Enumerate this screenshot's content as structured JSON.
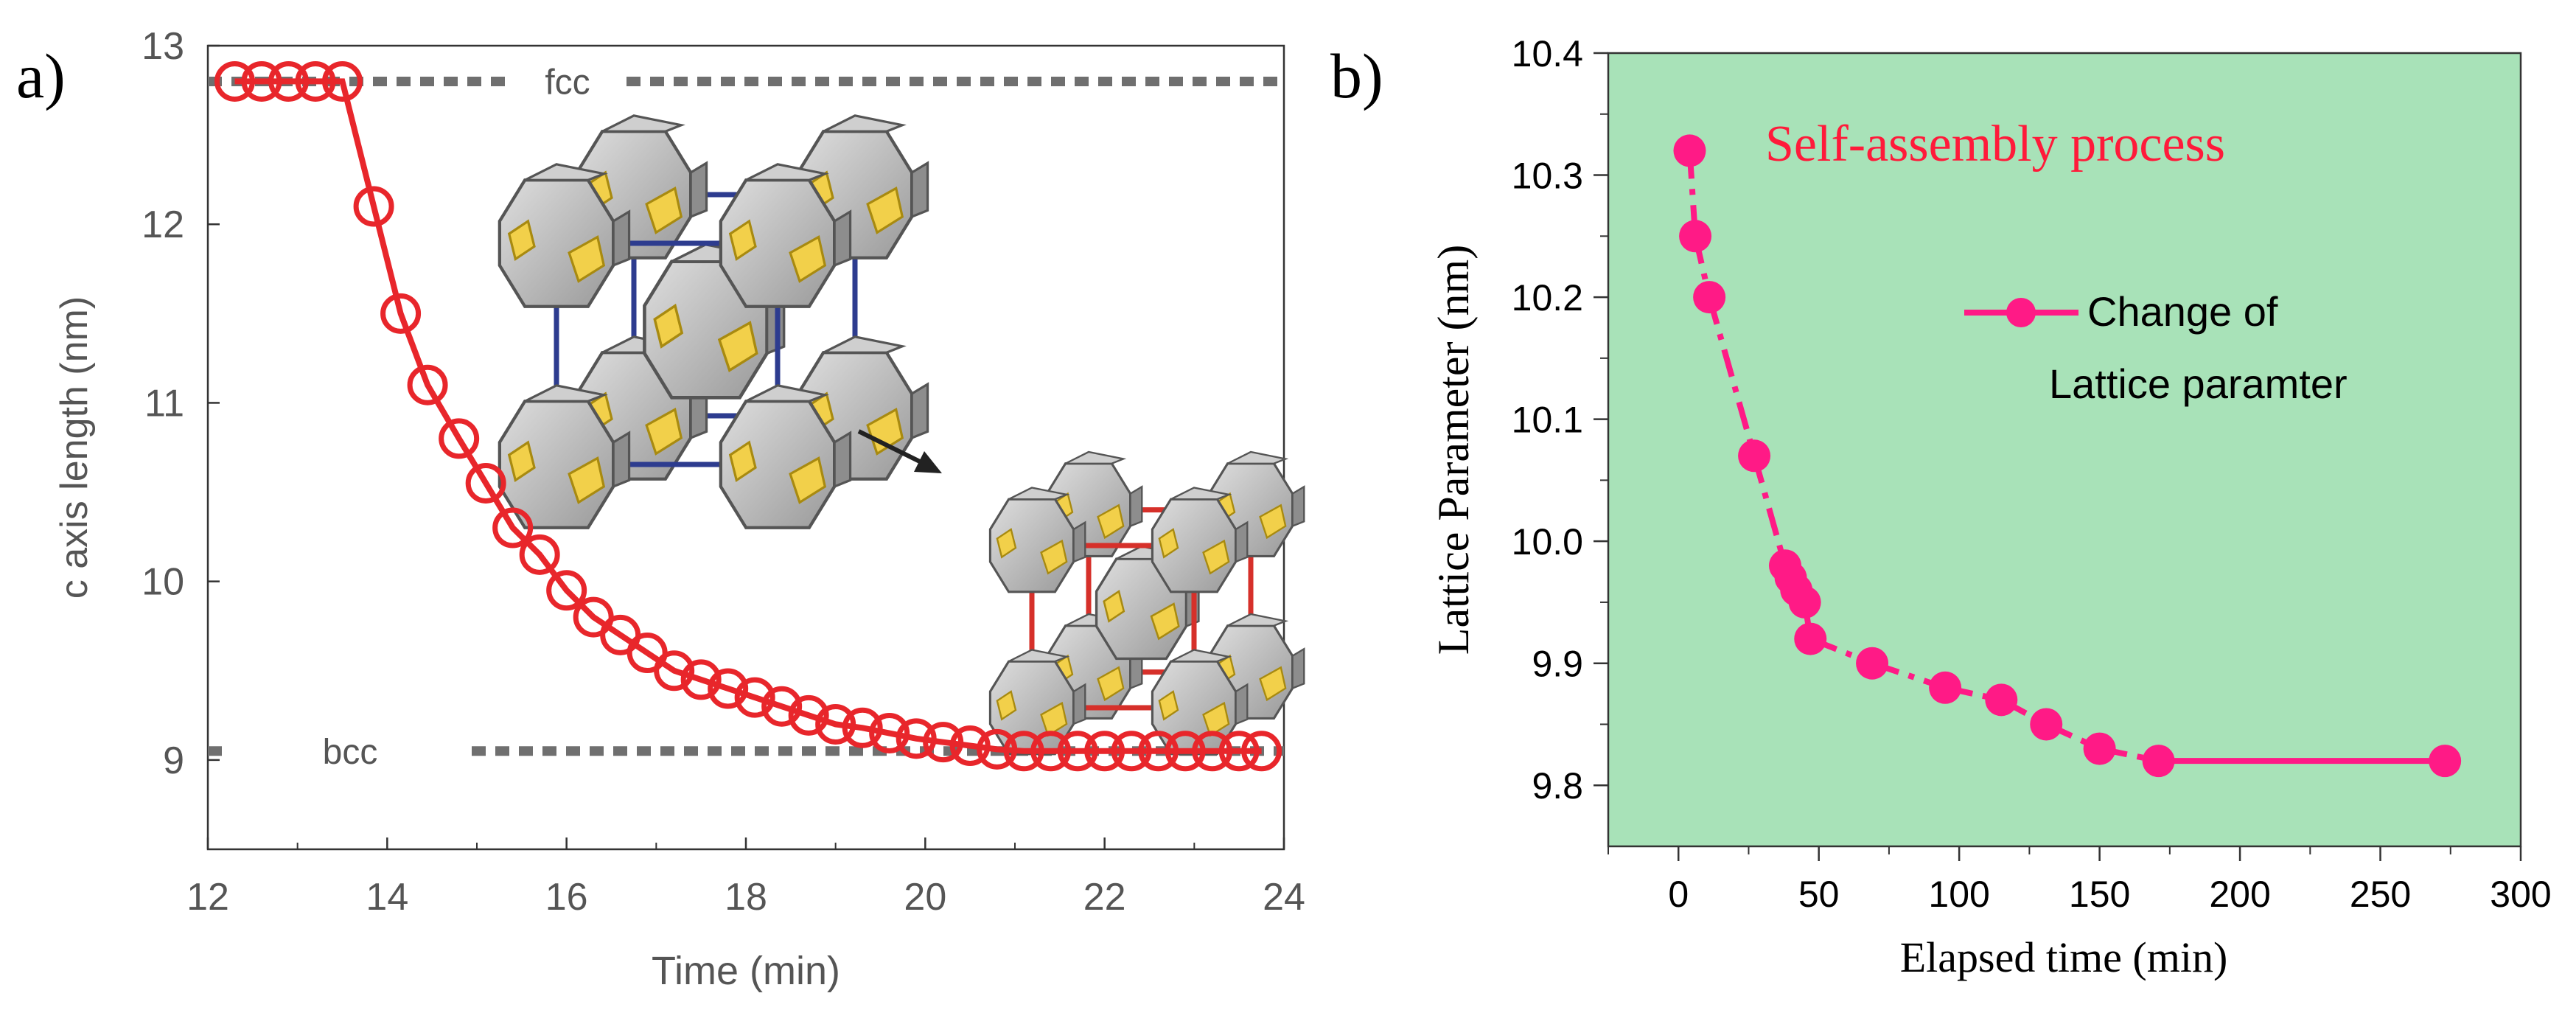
{
  "chart_data": [
    {
      "panel_label": "a)",
      "type": "line",
      "xlabel": "Time (min)",
      "ylabel": "c axis length (nm)",
      "xlim": [
        12,
        24
      ],
      "ylim": [
        8.5,
        13
      ],
      "xticks": [
        12,
        14,
        16,
        18,
        20,
        22,
        24
      ],
      "yticks": [
        9,
        10,
        11,
        12,
        13
      ],
      "x_tick_labels": [
        "12",
        "14",
        "16",
        "18",
        "20",
        "22",
        "24"
      ],
      "y_tick_labels": [
        "9",
        "10",
        "11",
        "12",
        "13"
      ],
      "reference_lines": [
        {
          "label": "fcc",
          "value": 12.8
        },
        {
          "label": "bcc",
          "value": 9.05
        }
      ],
      "series": [
        {
          "name": "c axis length",
          "color": "#e8262b",
          "x": [
            12.3,
            12.6,
            12.9,
            13.2,
            13.5,
            13.85,
            14.15,
            14.45,
            14.8,
            15.1,
            15.4,
            15.7,
            16.0,
            16.3,
            16.6,
            16.9,
            17.2,
            17.5,
            17.8,
            18.1,
            18.4,
            18.7,
            19.0,
            19.3,
            19.6,
            19.9,
            20.2,
            20.5,
            20.8,
            21.1,
            21.4,
            21.7,
            22.0,
            22.3,
            22.6,
            22.9,
            23.2,
            23.5,
            23.75
          ],
          "y": [
            12.8,
            12.8,
            12.8,
            12.8,
            12.8,
            12.1,
            11.5,
            11.1,
            10.8,
            10.55,
            10.3,
            10.15,
            9.95,
            9.8,
            9.7,
            9.6,
            9.5,
            9.45,
            9.4,
            9.35,
            9.3,
            9.25,
            9.2,
            9.18,
            9.15,
            9.12,
            9.1,
            9.08,
            9.06,
            9.05,
            9.05,
            9.05,
            9.05,
            9.05,
            9.05,
            9.05,
            9.05,
            9.05,
            9.05
          ]
        }
      ]
    },
    {
      "panel_label": "b)",
      "type": "line",
      "xlabel": "Elapsed time (min)",
      "ylabel": "Lattice Parameter (nm)",
      "annotation": "Self-assembly process",
      "xlim": [
        -25,
        300
      ],
      "ylim": [
        9.75,
        10.4
      ],
      "xticks": [
        0,
        50,
        100,
        150,
        200,
        250,
        300
      ],
      "yticks": [
        9.8,
        9.9,
        10.0,
        10.1,
        10.2,
        10.3,
        10.4
      ],
      "x_tick_labels": [
        "0",
        "50",
        "100",
        "150",
        "200",
        "250",
        "300"
      ],
      "y_tick_labels": [
        "9.8",
        "9.9",
        "10.0",
        "10.1",
        "10.2",
        "10.3",
        "10.4"
      ],
      "background_color": "#a8e2b8",
      "legend": {
        "placement": "top-right",
        "line1": "Change of",
        "line2": "Lattice paramter"
      },
      "series": [
        {
          "name": "Change of Lattice paramter",
          "color": "#ff1a86",
          "x": [
            4,
            6,
            11,
            27,
            38,
            40,
            42,
            45,
            47,
            69,
            95,
            115,
            131,
            150,
            171,
            273
          ],
          "y": [
            10.32,
            10.25,
            10.2,
            10.07,
            9.98,
            9.97,
            9.96,
            9.95,
            9.92,
            9.9,
            9.88,
            9.87,
            9.85,
            9.83,
            9.82,
            9.82
          ]
        }
      ]
    }
  ]
}
